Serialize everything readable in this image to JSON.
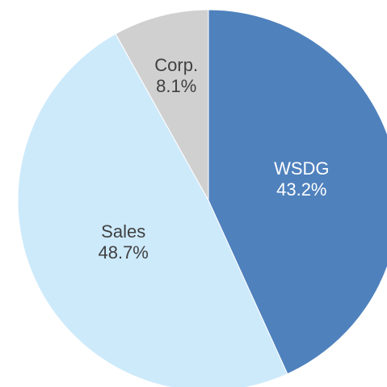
{
  "chart_data": {
    "type": "pie",
    "categories": [
      "WSDG",
      "Sales",
      "Corp."
    ],
    "values": [
      43.2,
      48.7,
      8.1
    ],
    "value_labels": [
      "43.2%",
      "48.7%",
      "8.1%"
    ],
    "colors": [
      "#4f81bd",
      "#cdeafb",
      "#d0d0d0"
    ],
    "label_colors": [
      "#ffffff",
      "#404040",
      "#404040"
    ]
  }
}
